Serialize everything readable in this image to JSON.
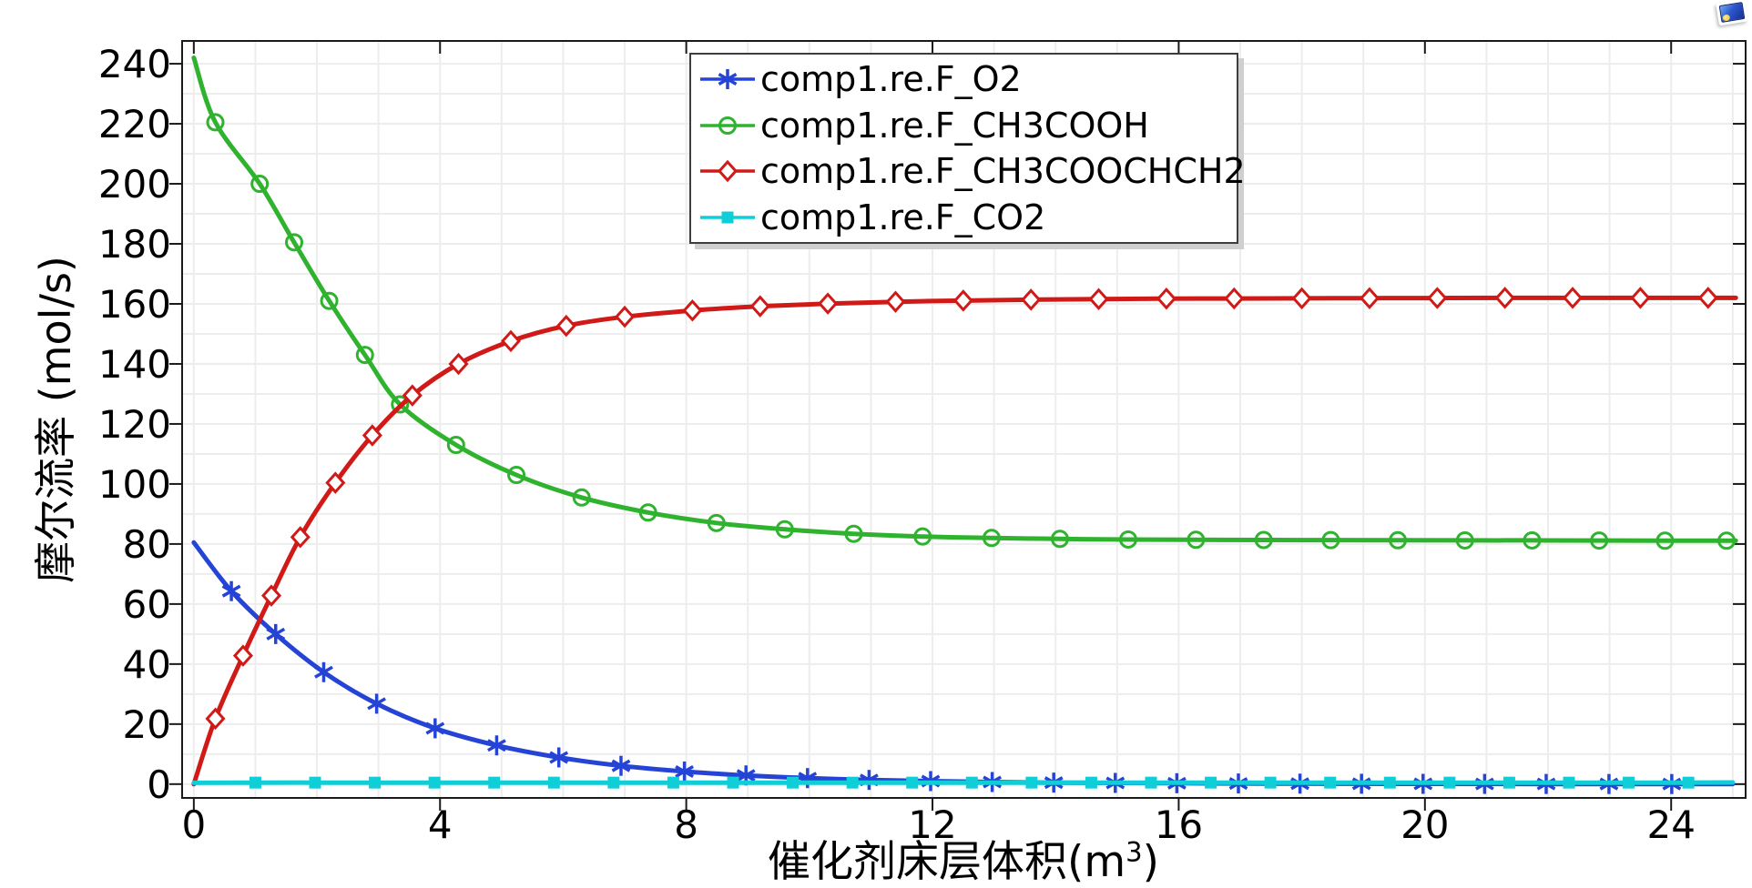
{
  "window": {
    "corner_icon": "graphics-window-icon"
  },
  "chart_data": {
    "type": "line",
    "title": "",
    "xlabel": {
      "text": "催化剂床层体积(m",
      "sup": "3",
      "suffix": ")"
    },
    "ylabel": "摩尔流率 (mol/s)",
    "xlim": [
      -0.19,
      25.21
    ],
    "ylim": [
      -4.6,
      247.6
    ],
    "x_ticks": [
      0,
      4,
      8,
      12,
      16,
      20,
      24
    ],
    "y_ticks": [
      0,
      20,
      40,
      60,
      80,
      100,
      120,
      140,
      160,
      180,
      200,
      220,
      240
    ],
    "x_grid_step": 1,
    "y_grid_step": 10,
    "grid": true,
    "grid_color": "#ededed",
    "axis_color": "#1a1a1a",
    "legend_position": "top-center",
    "series": [
      {
        "name": "comp1.re.F_O2",
        "color": "#2544d6",
        "marker": "star",
        "points": [
          [
            0,
            80.5
          ],
          [
            0.61,
            64.3
          ],
          [
            1.33,
            50.0
          ],
          [
            2.11,
            37.3
          ],
          [
            2.97,
            26.8
          ],
          [
            3.92,
            18.6
          ],
          [
            4.92,
            12.9
          ],
          [
            5.93,
            8.9
          ],
          [
            6.94,
            6.1
          ],
          [
            7.97,
            4.2
          ],
          [
            8.97,
            2.9
          ],
          [
            9.97,
            2.0
          ],
          [
            10.97,
            1.4
          ],
          [
            11.97,
            1.0
          ],
          [
            12.97,
            0.7
          ],
          [
            13.97,
            0.5
          ],
          [
            14.97,
            0.4
          ],
          [
            15.97,
            0.3
          ],
          [
            16.97,
            0.22
          ],
          [
            17.97,
            0.16
          ],
          [
            18.97,
            0.12
          ],
          [
            19.97,
            0.09
          ],
          [
            20.97,
            0.07
          ],
          [
            21.97,
            0.05
          ],
          [
            22.99,
            0.04
          ],
          [
            24.01,
            0.03
          ],
          [
            25.0,
            0.03
          ]
        ]
      },
      {
        "name": "comp1.re.F_CH3COOH",
        "color": "#2fb32f",
        "marker": "circle",
        "points": [
          [
            0,
            242.0
          ],
          [
            0.35,
            220.5
          ],
          [
            1.07,
            200.0
          ],
          [
            1.63,
            180.5
          ],
          [
            2.2,
            161.0
          ],
          [
            2.78,
            143.0
          ],
          [
            3.35,
            126.5
          ],
          [
            4.26,
            113.0
          ],
          [
            5.24,
            103.0
          ],
          [
            6.3,
            95.5
          ],
          [
            7.38,
            90.5
          ],
          [
            8.49,
            87.0
          ],
          [
            9.6,
            84.9
          ],
          [
            10.72,
            83.4
          ],
          [
            11.84,
            82.5
          ],
          [
            12.96,
            82.0
          ],
          [
            14.07,
            81.7
          ],
          [
            15.18,
            81.5
          ],
          [
            16.28,
            81.4
          ],
          [
            17.38,
            81.35
          ],
          [
            18.47,
            81.3
          ],
          [
            19.56,
            81.25
          ],
          [
            20.65,
            81.2
          ],
          [
            21.74,
            81.2
          ],
          [
            22.83,
            81.15
          ],
          [
            23.9,
            81.1
          ],
          [
            24.9,
            81.1
          ],
          [
            25.05,
            81.1
          ]
        ]
      },
      {
        "name": "comp1.re.F_CH3COOCHCH2",
        "color": "#d01a18",
        "marker": "diamond",
        "points": [
          [
            0,
            0.0
          ],
          [
            0.35,
            21.8
          ],
          [
            0.8,
            42.8
          ],
          [
            1.26,
            62.8
          ],
          [
            1.73,
            82.3
          ],
          [
            2.3,
            100.4
          ],
          [
            2.9,
            116.2
          ],
          [
            3.55,
            129.5
          ],
          [
            4.3,
            140.0
          ],
          [
            5.15,
            147.6
          ],
          [
            6.05,
            152.7
          ],
          [
            7.0,
            155.7
          ],
          [
            8.1,
            157.8
          ],
          [
            9.2,
            159.2
          ],
          [
            10.3,
            160.1
          ],
          [
            11.4,
            160.7
          ],
          [
            12.5,
            161.1
          ],
          [
            13.6,
            161.4
          ],
          [
            14.7,
            161.6
          ],
          [
            15.8,
            161.75
          ],
          [
            16.9,
            161.8
          ],
          [
            18.0,
            161.85
          ],
          [
            19.1,
            161.9
          ],
          [
            20.2,
            161.95
          ],
          [
            21.3,
            162.0
          ],
          [
            22.4,
            162.0
          ],
          [
            23.5,
            162.0
          ],
          [
            24.6,
            162.0
          ],
          [
            25.05,
            162.0
          ]
        ]
      },
      {
        "name": "comp1.re.F_CO2",
        "color": "#10ced8",
        "marker": "square",
        "points": [
          [
            0,
            0.45
          ],
          [
            1.0,
            0.5
          ],
          [
            1.97,
            0.5
          ],
          [
            2.94,
            0.5
          ],
          [
            3.91,
            0.5
          ],
          [
            4.88,
            0.5
          ],
          [
            5.85,
            0.5
          ],
          [
            6.82,
            0.5
          ],
          [
            7.79,
            0.5
          ],
          [
            8.76,
            0.5
          ],
          [
            9.73,
            0.5
          ],
          [
            10.7,
            0.5
          ],
          [
            11.67,
            0.5
          ],
          [
            12.64,
            0.5
          ],
          [
            13.61,
            0.5
          ],
          [
            14.58,
            0.5
          ],
          [
            15.55,
            0.5
          ],
          [
            16.52,
            0.5
          ],
          [
            17.49,
            0.5
          ],
          [
            18.46,
            0.5
          ],
          [
            19.43,
            0.5
          ],
          [
            20.4,
            0.5
          ],
          [
            21.37,
            0.5
          ],
          [
            22.34,
            0.5
          ],
          [
            23.31,
            0.5
          ],
          [
            24.28,
            0.5
          ],
          [
            25.0,
            0.55
          ]
        ]
      }
    ]
  }
}
